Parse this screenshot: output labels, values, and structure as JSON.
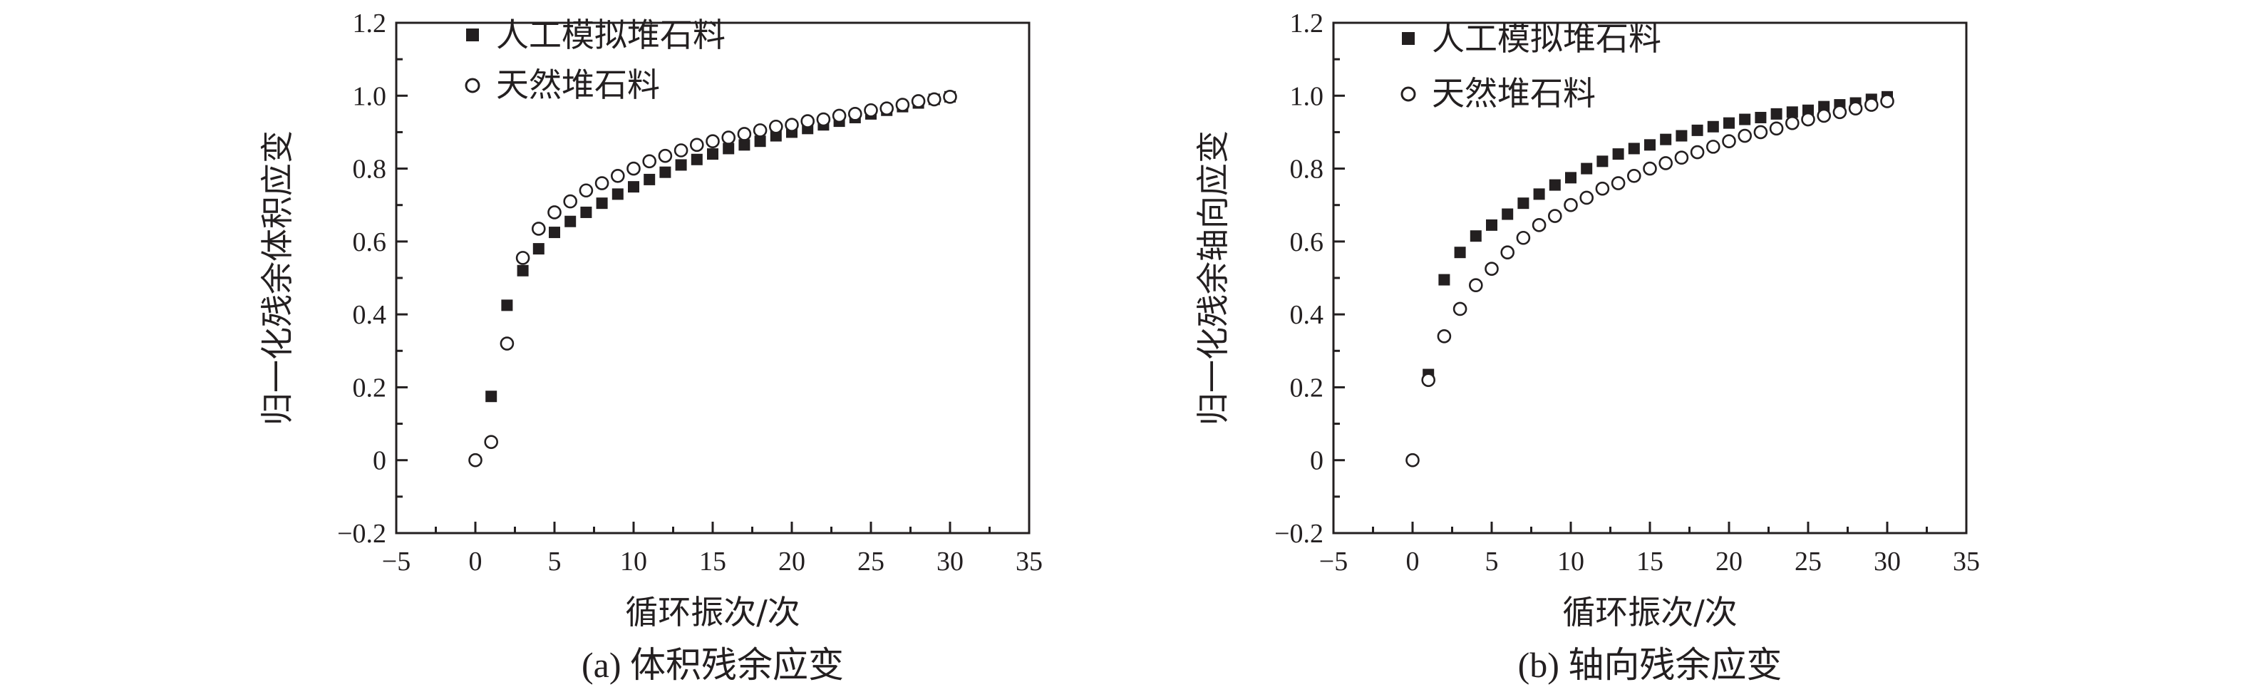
{
  "colors": {
    "ink": "#231f20",
    "background": "#ffffff"
  },
  "chart_data": [
    {
      "type": "scatter",
      "caption": "(a) 体积残余应变",
      "xlabel": "循环振次/次",
      "ylabel": "归一化残余体积应变",
      "xlim": [
        -5,
        35
      ],
      "ylim": [
        -0.2,
        1.2
      ],
      "x_ticks": [
        "−5",
        "0",
        "5",
        "10",
        "15",
        "20",
        "25",
        "30",
        "35"
      ],
      "y_ticks": [
        "−0.2",
        "0",
        "0.2",
        "0.4",
        "0.6",
        "0.8",
        "1.0",
        "1.2"
      ],
      "legend_position": "top-left",
      "grid": false,
      "series": [
        {
          "name": "人工模拟堆石料",
          "marker": "filled-square",
          "x": [
            1,
            2,
            3,
            4,
            5,
            6,
            7,
            8,
            9,
            10,
            11,
            12,
            13,
            14,
            15,
            16,
            17,
            18,
            19,
            20,
            21,
            22,
            23,
            24,
            25,
            26,
            27,
            28,
            29,
            30
          ],
          "y": [
            0.175,
            0.425,
            0.52,
            0.58,
            0.625,
            0.655,
            0.68,
            0.705,
            0.73,
            0.75,
            0.77,
            0.79,
            0.81,
            0.825,
            0.84,
            0.855,
            0.865,
            0.875,
            0.89,
            0.9,
            0.91,
            0.92,
            0.93,
            0.94,
            0.95,
            0.96,
            0.97,
            0.98,
            0.99,
            0.997
          ]
        },
        {
          "name": "天然堆石料",
          "marker": "open-circle",
          "x": [
            0,
            1,
            2,
            3,
            4,
            5,
            6,
            7,
            8,
            9,
            10,
            11,
            12,
            13,
            14,
            15,
            16,
            17,
            18,
            19,
            20,
            21,
            22,
            23,
            24,
            25,
            26,
            27,
            28,
            29,
            30
          ],
          "y": [
            0,
            0.05,
            0.32,
            0.555,
            0.635,
            0.68,
            0.71,
            0.74,
            0.76,
            0.78,
            0.8,
            0.82,
            0.835,
            0.85,
            0.865,
            0.875,
            0.885,
            0.895,
            0.905,
            0.915,
            0.92,
            0.93,
            0.935,
            0.945,
            0.95,
            0.96,
            0.965,
            0.975,
            0.985,
            0.99,
            0.997
          ]
        }
      ]
    },
    {
      "type": "scatter",
      "caption": "(b) 轴向残余应变",
      "xlabel": "循环振次/次",
      "ylabel": "归一化残余轴向应变",
      "xlim": [
        -5,
        35
      ],
      "ylim": [
        -0.2,
        1.2
      ],
      "x_ticks": [
        "−5",
        "0",
        "5",
        "10",
        "15",
        "20",
        "25",
        "30",
        "35"
      ],
      "y_ticks": [
        "−0.2",
        "0",
        "0.2",
        "0.4",
        "0.6",
        "0.8",
        "1.0",
        "1.2"
      ],
      "legend_position": "top-left",
      "grid": false,
      "series": [
        {
          "name": "人工模拟堆石料",
          "marker": "filled-square",
          "x": [
            1,
            2,
            3,
            4,
            5,
            6,
            7,
            8,
            9,
            10,
            11,
            12,
            13,
            14,
            15,
            16,
            17,
            18,
            19,
            20,
            21,
            22,
            23,
            24,
            25,
            26,
            27,
            28,
            29,
            30
          ],
          "y": [
            0.235,
            0.495,
            0.57,
            0.615,
            0.645,
            0.675,
            0.705,
            0.73,
            0.755,
            0.775,
            0.8,
            0.82,
            0.84,
            0.855,
            0.865,
            0.88,
            0.89,
            0.905,
            0.915,
            0.925,
            0.935,
            0.94,
            0.95,
            0.955,
            0.96,
            0.97,
            0.975,
            0.98,
            0.99,
            0.997
          ]
        },
        {
          "name": "天然堆石料",
          "marker": "open-circle",
          "x": [
            0,
            1,
            2,
            3,
            4,
            5,
            6,
            7,
            8,
            9,
            10,
            11,
            12,
            13,
            14,
            15,
            16,
            17,
            18,
            19,
            20,
            21,
            22,
            23,
            24,
            25,
            26,
            27,
            28,
            29,
            30
          ],
          "y": [
            0,
            0.22,
            0.34,
            0.415,
            0.48,
            0.525,
            0.57,
            0.61,
            0.645,
            0.67,
            0.7,
            0.72,
            0.745,
            0.76,
            0.78,
            0.8,
            0.815,
            0.83,
            0.845,
            0.86,
            0.875,
            0.89,
            0.9,
            0.91,
            0.925,
            0.935,
            0.945,
            0.955,
            0.965,
            0.975,
            0.985
          ]
        }
      ]
    }
  ]
}
